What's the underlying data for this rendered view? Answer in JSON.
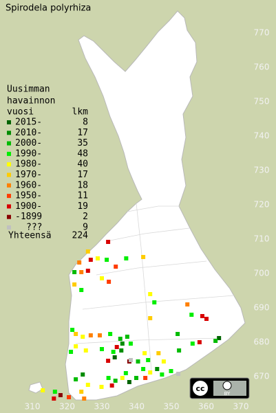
{
  "title": "Spirodela polyrhiza",
  "legend": {
    "heading": [
      "Uusimman",
      "havainnon",
      "vuosi"
    ],
    "count_heading": "lkm",
    "periods": [
      {
        "name": "2015-",
        "color": "#006400",
        "count": 8
      },
      {
        "name": "2010-",
        "color": "#008c00",
        "count": 17
      },
      {
        "name": "2000-",
        "color": "#00bb00",
        "count": 35
      },
      {
        "name": "1990-",
        "color": "#00ee00",
        "count": 48
      },
      {
        "name": "1980-",
        "color": "#ffff00",
        "count": 40
      },
      {
        "name": "1970-",
        "color": "#ffcc00",
        "count": 17
      },
      {
        "name": "1960-",
        "color": "#ff8000",
        "count": 18
      },
      {
        "name": "1950-",
        "color": "#ff3c00",
        "count": 11
      },
      {
        "name": "1900-",
        "color": "#d80000",
        "count": 19
      },
      {
        "name": "-1899",
        "color": "#880000",
        "count": 2
      },
      {
        "name": "???",
        "color": "#c0c0c0",
        "count": 9
      }
    ],
    "total_label": "Yhteensä",
    "total": 224
  },
  "map": {
    "xticks": [
      310,
      320,
      330,
      340,
      350,
      360,
      370
    ],
    "yticks": [
      670,
      680,
      690,
      700,
      710,
      720,
      730,
      740,
      750,
      760,
      770
    ],
    "observations": [
      [
        331.8,
        709.2,
        8
      ],
      [
        326.8,
        704.0,
        8
      ],
      [
        328.8,
        704.4,
        4
      ],
      [
        326.0,
        706.4,
        5
      ],
      [
        331.4,
        704.0,
        3
      ],
      [
        323.5,
        703.2,
        6
      ],
      [
        322.1,
        700.4,
        2
      ],
      [
        324.1,
        700.4,
        6
      ],
      [
        326.0,
        700.8,
        8
      ],
      [
        330.0,
        698.6,
        4
      ],
      [
        332.0,
        697.6,
        7
      ],
      [
        322.1,
        696.8,
        5
      ],
      [
        324.1,
        695.2,
        3
      ],
      [
        334.0,
        702.0,
        7
      ],
      [
        337.0,
        704.4,
        3
      ],
      [
        341.9,
        704.8,
        5
      ],
      [
        343.9,
        694.0,
        4
      ],
      [
        345.1,
        691.6,
        3
      ],
      [
        354.6,
        691.0,
        6
      ],
      [
        355.8,
        688.0,
        3
      ],
      [
        358.9,
        687.6,
        8
      ],
      [
        360.1,
        686.8,
        8
      ],
      [
        343.9,
        687.0,
        5
      ],
      [
        351.8,
        682.4,
        2
      ],
      [
        363.7,
        681.2,
        0
      ],
      [
        362.7,
        680.4,
        2
      ],
      [
        321.5,
        683.6,
        3
      ],
      [
        322.5,
        682.4,
        5
      ],
      [
        324.5,
        681.6,
        4
      ],
      [
        326.8,
        682.0,
        6
      ],
      [
        329.4,
        682.0,
        6
      ],
      [
        332.4,
        682.4,
        3
      ],
      [
        335.3,
        681.0,
        2
      ],
      [
        337.3,
        681.6,
        2
      ],
      [
        335.9,
        679.6,
        1
      ],
      [
        338.3,
        679.6,
        3
      ],
      [
        333.3,
        677.2,
        3
      ],
      [
        334.3,
        678.6,
        8
      ],
      [
        330.0,
        678.0,
        3
      ],
      [
        322.5,
        678.8,
        4
      ],
      [
        325.4,
        677.6,
        4
      ],
      [
        321.1,
        677.2,
        3
      ],
      [
        342.3,
        676.8,
        4
      ],
      [
        343.3,
        674.8,
        3
      ],
      [
        340.4,
        674.4,
        2
      ],
      [
        337.9,
        674.4,
        9
      ],
      [
        346.3,
        676.8,
        5
      ],
      [
        347.8,
        674.4,
        4
      ],
      [
        352.2,
        677.6,
        2
      ],
      [
        356.1,
        679.6,
        3
      ],
      [
        358.1,
        680.0,
        8
      ],
      [
        336.9,
        671.0,
        3
      ],
      [
        335.9,
        669.6,
        4
      ],
      [
        333.9,
        668.8,
        2
      ],
      [
        331.9,
        669.6,
        3
      ],
      [
        332.9,
        667.4,
        8
      ],
      [
        329.9,
        667.0,
        4
      ],
      [
        337.9,
        668.4,
        0
      ],
      [
        339.9,
        669.6,
        2
      ],
      [
        341.9,
        672.2,
        3
      ],
      [
        343.9,
        671.2,
        4
      ],
      [
        345.9,
        672.2,
        1
      ],
      [
        347.3,
        670.6,
        3
      ],
      [
        349.9,
        671.6,
        3
      ],
      [
        342.5,
        669.6,
        7
      ],
      [
        324.5,
        670.6,
        1
      ],
      [
        322.5,
        669.2,
        2
      ],
      [
        324.1,
        665.6,
        5
      ],
      [
        326.0,
        667.6,
        4
      ],
      [
        324.9,
        663.6,
        6
      ],
      [
        318.1,
        664.6,
        9
      ],
      [
        316.5,
        665.6,
        3
      ],
      [
        313.0,
        666.0,
        4
      ],
      [
        316.2,
        663.6,
        8
      ],
      [
        320.5,
        664.0,
        7
      ],
      [
        338.3,
        674.8,
        10
      ],
      [
        352.0,
        670.8,
        10
      ],
      [
        335.6,
        677.6,
        1
      ],
      [
        333.7,
        675.6,
        0
      ],
      [
        331.8,
        674.6,
        8
      ]
    ]
  },
  "license": {
    "icon": "cc",
    "label": "BY"
  }
}
